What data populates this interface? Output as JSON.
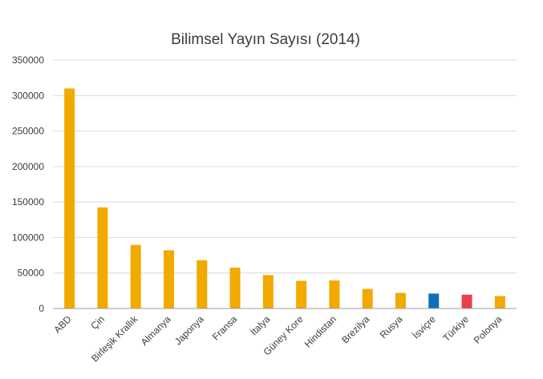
{
  "chart_data": {
    "type": "bar",
    "title": "Bilimsel Yayın Sayısı (2014)",
    "xlabel": "",
    "ylabel": "",
    "ylim": [
      0,
      350000
    ],
    "yticks": [
      "0",
      "50000",
      "100000",
      "150000",
      "200000",
      "250000",
      "300000",
      "350000"
    ],
    "categories": [
      "ABD",
      "Çin",
      "Birleşik Krallık",
      "Almanya",
      "Japonya",
      "Fransa",
      "İtalya",
      "Güney Kore",
      "Hindistan",
      "Brezilya",
      "Rusya",
      "İsviçre",
      "Türkiye",
      "Polonya"
    ],
    "values": [
      310000,
      142500,
      89500,
      82000,
      68000,
      57500,
      47000,
      39000,
      39500,
      27500,
      22000,
      21000,
      19500,
      17500
    ],
    "colors": [
      "#f2a900",
      "#f2a900",
      "#f2a900",
      "#f2a900",
      "#f2a900",
      "#f2a900",
      "#f2a900",
      "#f2a900",
      "#f2a900",
      "#f2a900",
      "#f2a900",
      "#0e6fba",
      "#e8414c",
      "#f2a900"
    ],
    "grid": true,
    "legend": "none"
  }
}
